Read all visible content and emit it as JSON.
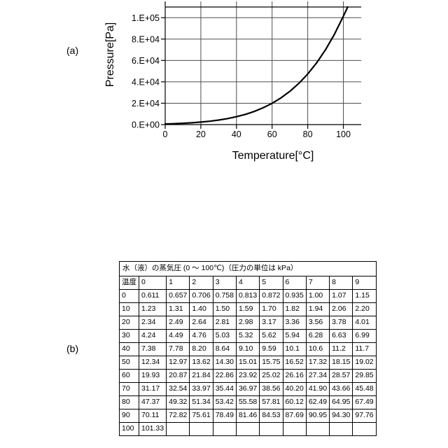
{
  "figure_labels": {
    "a": "(a)",
    "b": "(b)"
  },
  "colors": {
    "background": "#ffffff",
    "curve": "#000000",
    "grid": "#4d4d4d",
    "axis": "#000000",
    "table_border": "#000000",
    "text": "#000000"
  },
  "chart_data": [
    {
      "type": "line",
      "title": "",
      "xlabel": "Temperature[°C]",
      "ylabel": "Pressure[Pa]",
      "xlim": [
        0,
        110
      ],
      "ylim": [
        0,
        110000
      ],
      "grid": true,
      "legend": "none",
      "x_ticks": [
        {
          "label": "0",
          "value": 0
        },
        {
          "label": "20",
          "value": 20
        },
        {
          "label": "40",
          "value": 40
        },
        {
          "label": "60",
          "value": 60
        },
        {
          "label": "80",
          "value": 80
        },
        {
          "label": "100",
          "value": 100
        }
      ],
      "y_ticks": [
        {
          "label": "0.E+00",
          "value": 0
        },
        {
          "label": "2.E+04",
          "value": 20000
        },
        {
          "label": "4.E+04",
          "value": 40000
        },
        {
          "label": "6.E+04",
          "value": 60000
        },
        {
          "label": "8.E+04",
          "value": 80000
        },
        {
          "label": "1.E+05",
          "value": 100000
        }
      ],
      "series": [
        {
          "name": "water-vapor-pressure",
          "x": [
            0,
            5,
            10,
            15,
            20,
            25,
            30,
            35,
            40,
            45,
            50,
            55,
            60,
            65,
            70,
            75,
            80,
            85,
            90,
            95,
            100,
            102.4
          ],
          "y": [
            611,
            872,
            1230,
            1700,
            2340,
            3170,
            4240,
            5620,
            7380,
            9590,
            12340,
            15750,
            19930,
            25020,
            31170,
            38560,
            47370,
            57810,
            70110,
            84530,
            101330,
            110000
          ]
        }
      ]
    },
    {
      "type": "table",
      "title": "水（液）の蒸気圧 (0 ～ 100℃)（圧力の単位は kPa）",
      "corner_header": "温度",
      "col_headers": [
        "0",
        "1",
        "2",
        "3",
        "4",
        "5",
        "6",
        "7",
        "8",
        "9"
      ],
      "rows": [
        {
          "label": "0",
          "values": [
            "0.611",
            "0.657",
            "0.706",
            "0.758",
            "0.813",
            "0.872",
            "0.935",
            "1.00",
            "1.07",
            "1.15"
          ]
        },
        {
          "label": "10",
          "values": [
            "1.23",
            "1.31",
            "1.40",
            "1.50",
            "1.59",
            "1.70",
            "1.82",
            "1.94",
            "2.06",
            "2.20"
          ]
        },
        {
          "label": "20",
          "values": [
            "2.34",
            "2.49",
            "2.64",
            "2.81",
            "2.98",
            "3.17",
            "3.36",
            "3.56",
            "3.78",
            "4.01"
          ]
        },
        {
          "label": "30",
          "values": [
            "4.24",
            "4.49",
            "4.76",
            "5.03",
            "5.32",
            "5.62",
            "5.94",
            "6.28",
            "6.63",
            "6.99"
          ]
        },
        {
          "label": "40",
          "values": [
            "7.38",
            "7.78",
            "8.20",
            "8.64",
            "9.10",
            "9.59",
            "10.1",
            "10.6",
            "11.2",
            "11.7"
          ]
        },
        {
          "label": "50",
          "values": [
            "12.34",
            "12.97",
            "13.62",
            "14.30",
            "15.01",
            "15.75",
            "16.52",
            "17.32",
            "18.15",
            "19.02"
          ]
        },
        {
          "label": "60",
          "values": [
            "19.93",
            "20.87",
            "21.84",
            "22.86",
            "23.92",
            "25.02",
            "26.16",
            "27.34",
            "28.57",
            "29.85"
          ]
        },
        {
          "label": "70",
          "values": [
            "31.17",
            "32.54",
            "33.97",
            "35.44",
            "36.97",
            "38.56",
            "40.20",
            "41.90",
            "43.66",
            "45.48"
          ]
        },
        {
          "label": "80",
          "values": [
            "47.37",
            "49.32",
            "51.34",
            "53.42",
            "55.58",
            "57.81",
            "60.12",
            "62.49",
            "64.95",
            "67.49"
          ]
        },
        {
          "label": "90",
          "values": [
            "70.11",
            "72.82",
            "75.61",
            "78.49",
            "81.46",
            "84.53",
            "87.69",
            "90.95",
            "94.30",
            "97.76"
          ]
        },
        {
          "label": "100",
          "values": [
            "101.33",
            "",
            "",
            "",
            "",
            "",
            "",
            "",
            "",
            ""
          ]
        }
      ]
    }
  ]
}
